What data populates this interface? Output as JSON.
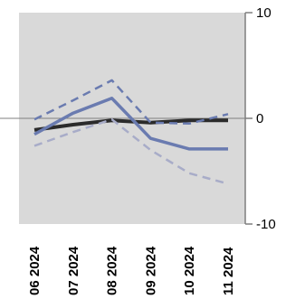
{
  "chart_data": {
    "type": "line",
    "categories": [
      "06 2024",
      "07 2024",
      "08 2024",
      "09 2024",
      "10 2024",
      "11 2024"
    ],
    "ylim": [
      -10,
      10
    ],
    "yticks": [
      {
        "value": 10,
        "label": "10"
      },
      {
        "value": 0,
        "label": "0"
      },
      {
        "value": -10,
        "label": "-10"
      }
    ],
    "grid": false,
    "colors": {
      "plot_bg": "#d9d9d9",
      "axis": "#7f7f7f",
      "zero_line": "#7f7f7f",
      "black": "#2b2b2b",
      "blue": "#6a7bb0",
      "light_blue": "#a8acc8"
    },
    "series": [
      {
        "style": "solid",
        "color": "#2b2b2b",
        "width": 4,
        "values": [
          -1.1,
          -0.6,
          -0.2,
          -0.4,
          -0.2,
          -0.2
        ]
      },
      {
        "style": "solid",
        "color": "#6a7bb0",
        "width": 3.5,
        "values": [
          -1.5,
          0.5,
          1.9,
          -1.9,
          -2.9,
          -2.9
        ]
      },
      {
        "style": "dashed",
        "color": "#6a7bb0",
        "width": 2.5,
        "values": [
          -0.1,
          1.7,
          3.6,
          -0.4,
          -0.5,
          0.4
        ]
      },
      {
        "style": "dashed",
        "color": "#a8acc8",
        "width": 2.5,
        "values": [
          -2.6,
          -1.3,
          -0.1,
          -3.0,
          -5.2,
          -6.2
        ]
      }
    ]
  }
}
